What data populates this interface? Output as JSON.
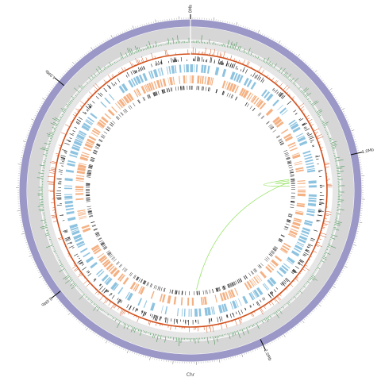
{
  "diagram": {
    "chromosome_label": "Chr",
    "scale_labels": [
      {
        "text": "0Mb",
        "mb": 0
      },
      {
        "text": "1.0Mb",
        "mb": 1.0
      },
      {
        "text": "2.0Mb",
        "mb": 2.0
      },
      {
        "text": "3.0Mb",
        "mb": 3.0
      },
      {
        "text": "4.0Mb",
        "mb": 4.0
      }
    ],
    "genome_length_mb": 4.65,
    "colors": {
      "ideogram": "#9b98c8",
      "gray_outer": "#d6d6d6",
      "gray_inner": "#e6e6e6",
      "gc_skew": "#2e8b3e",
      "gc_content": "#d2521f",
      "genes_plus": "#8ec3e0",
      "genes_minus": "#f4b183",
      "feature_black": "#222222",
      "links": "#8fe05a"
    },
    "tracks": [
      "ideogram",
      "gc-skew",
      "gc-content",
      "black-features",
      "plus-strand-genes",
      "minus-strand-genes",
      "links"
    ]
  }
}
